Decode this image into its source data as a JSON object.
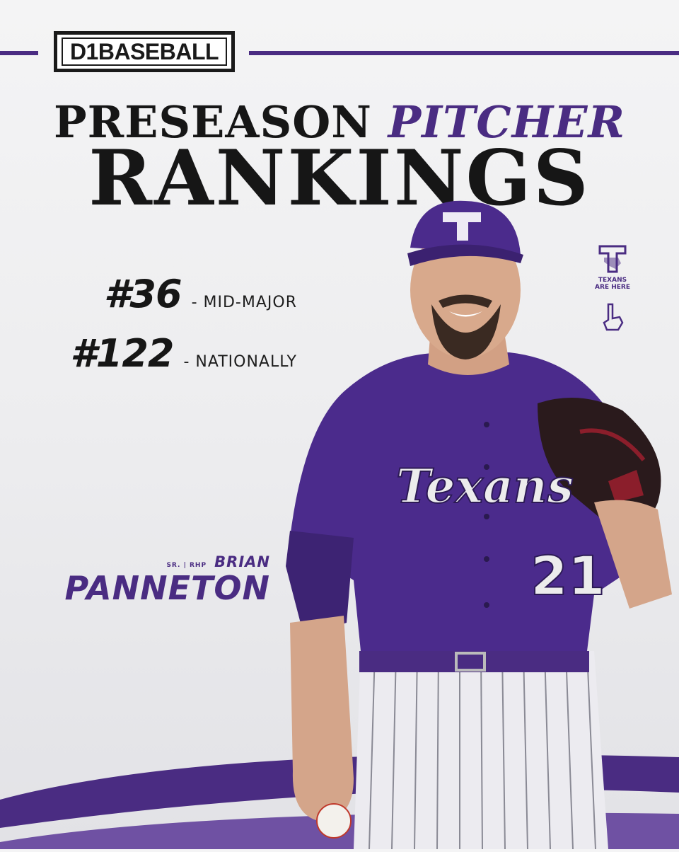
{
  "brand": {
    "logo_text": "D1BASEBALL"
  },
  "headline": {
    "line1_prefix": "PRESEASON",
    "line1_accent": "PITCHER",
    "line2": "RANKINGS"
  },
  "rankings": [
    {
      "rank": "#36",
      "label": "- MID-MAJOR"
    },
    {
      "rank": "#122",
      "label": "- NATIONALLY"
    }
  ],
  "player": {
    "position": "SR. | RHP",
    "first_name": "BRIAN",
    "last_name": "PANNETON",
    "jersey_script": "Texans",
    "jersey_number": "21"
  },
  "team": {
    "tagline_1": "TEXANS",
    "tagline_2": "ARE HERE"
  },
  "colors": {
    "accent": "#4a2c82",
    "dark": "#161616",
    "background": "#efeff1"
  }
}
